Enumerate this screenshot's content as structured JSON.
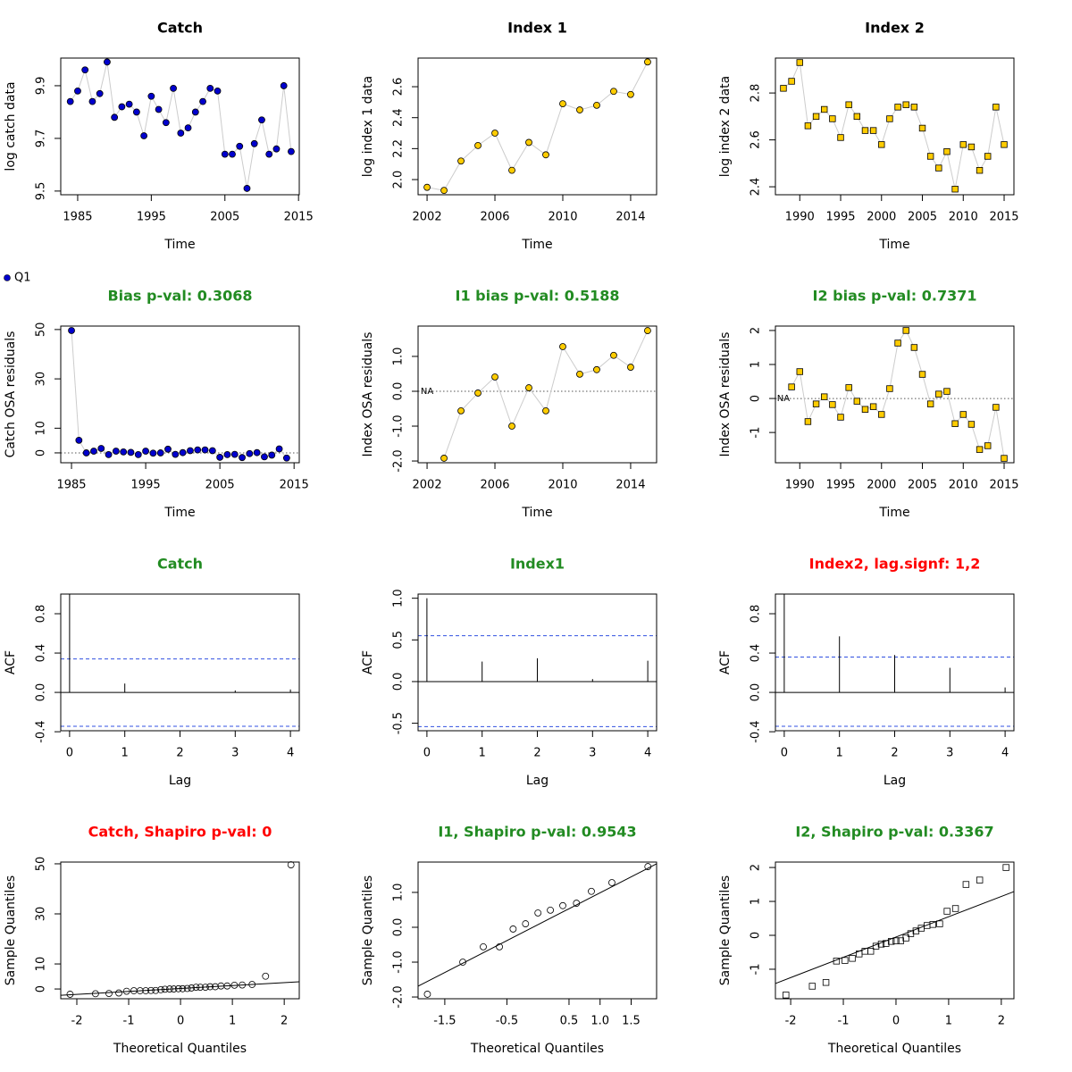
{
  "chart_data": [
    {
      "type": "line",
      "title": "Catch",
      "title_color": "#000000",
      "xlabel": "Time",
      "ylabel": "log catch data",
      "marker": "circle",
      "x": [
        1984,
        1985,
        1986,
        1987,
        1988,
        1989,
        1990,
        1991,
        1992,
        1993,
        1994,
        1995,
        1996,
        1997,
        1998,
        1999,
        2000,
        2001,
        2002,
        2003,
        2004,
        2005,
        2006,
        2007,
        2008,
        2009,
        2010,
        2011,
        2012,
        2013,
        2014
      ],
      "series": [
        {
          "name": "Q1",
          "color": "#0000cd",
          "values": [
            9.84,
            9.88,
            9.96,
            9.84,
            9.87,
            9.99,
            9.78,
            9.82,
            9.83,
            9.8,
            9.71,
            9.86,
            9.81,
            9.76,
            9.89,
            9.72,
            9.74,
            9.8,
            9.84,
            9.89,
            9.88,
            9.64,
            9.64,
            9.67,
            9.51,
            9.68,
            9.77,
            9.64,
            9.66,
            9.9,
            9.65
          ]
        }
      ],
      "xlim": [
        1982.7,
        2015.1
      ],
      "ylim": [
        9.486,
        10.005
      ],
      "xticks": [
        1985,
        1995,
        2005,
        2015
      ],
      "yticks": [
        9.5,
        9.7,
        9.9
      ]
    },
    {
      "type": "line",
      "title": "Index 1",
      "title_color": "#000000",
      "xlabel": "Time",
      "ylabel": "log index 1 data",
      "marker": "circle",
      "x": [
        2002,
        2003,
        2004,
        2005,
        2006,
        2007,
        2008,
        2009,
        2010,
        2011,
        2012,
        2013,
        2014,
        2015
      ],
      "series": [
        {
          "color": "#ffcc00",
          "values": [
            1.95,
            1.93,
            2.12,
            2.22,
            2.3,
            2.06,
            2.24,
            2.16,
            2.49,
            2.45,
            2.48,
            2.57,
            2.55,
            2.76
          ]
        }
      ],
      "xlim": [
        2001.47,
        2015.53
      ],
      "ylim": [
        1.902,
        2.785
      ],
      "xticks": [
        2002,
        2006,
        2010,
        2014
      ],
      "yticks": [
        {
          "value": 2,
          "label": "2.0"
        },
        2.2,
        2.4,
        2.6
      ]
    },
    {
      "type": "line",
      "title": "Index 2",
      "title_color": "#000000",
      "xlabel": "Time",
      "ylabel": "log index 2 data",
      "marker": "square",
      "x": [
        1988,
        1989,
        1990,
        1991,
        1992,
        1993,
        1994,
        1995,
        1996,
        1997,
        1998,
        1999,
        2000,
        2001,
        2002,
        2003,
        2004,
        2005,
        2006,
        2007,
        2008,
        2009,
        2010,
        2011,
        2012,
        2013,
        2014,
        2015
      ],
      "series": [
        {
          "color": "#ffcc00",
          "values": [
            2.82,
            2.85,
            2.93,
            2.66,
            2.7,
            2.73,
            2.69,
            2.61,
            2.75,
            2.7,
            2.64,
            2.64,
            2.58,
            2.69,
            2.74,
            2.75,
            2.74,
            2.65,
            2.53,
            2.48,
            2.55,
            2.39,
            2.58,
            2.57,
            2.47,
            2.53,
            2.74,
            2.58
          ]
        }
      ],
      "xlim": [
        1987.02,
        2016.2
      ],
      "ylim": [
        2.366,
        2.949
      ],
      "xticks": [
        1990,
        1995,
        2000,
        2005,
        2010,
        2015
      ],
      "yticks": [
        2.4,
        2.6,
        2.8
      ]
    },
    {
      "type": "line",
      "title": "Bias p-val: 0.3068",
      "title_color": "#228b22",
      "xlabel": "Time",
      "ylabel": "Catch OSA residuals",
      "marker": "circle",
      "hline": 0,
      "x": [
        1985,
        1986,
        1987,
        1988,
        1989,
        1990,
        1991,
        1992,
        1993,
        1994,
        1995,
        1996,
        1997,
        1998,
        1999,
        2000,
        2001,
        2002,
        2003,
        2004,
        2005,
        2006,
        2007,
        2008,
        2009,
        2010,
        2011,
        2012,
        2013,
        2014
      ],
      "series": [
        {
          "color": "#0000cd",
          "values": [
            49.6,
            5.1,
            0,
            0.7,
            1.8,
            -0.7,
            0.7,
            0.4,
            0.2,
            -0.7,
            0.7,
            -0.1,
            0,
            1.5,
            -0.6,
            0.1,
            0.9,
            1.2,
            1.2,
            0.9,
            -1.8,
            -0.7,
            -0.6,
            -1.9,
            -0.3,
            0.1,
            -1.6,
            -0.9,
            1.6,
            -2.1
          ]
        }
      ],
      "xlim": [
        1983.55,
        2015.7
      ],
      "ylim": [
        -4.0,
        51.4
      ],
      "xticks": [
        1985,
        1995,
        2005,
        2015
      ],
      "yticks": [
        0,
        10,
        30,
        50
      ]
    },
    {
      "type": "line",
      "title": "I1 bias p-val: 0.5188",
      "title_color": "#228b22",
      "xlabel": "Time",
      "ylabel": "Index OSA residuals",
      "marker": "circle",
      "hline": 0,
      "annotation": "NA",
      "x": [
        2002,
        2003,
        2004,
        2005,
        2006,
        2007,
        2008,
        2009,
        2010,
        2011,
        2012,
        2013,
        2014,
        2015
      ],
      "series": [
        {
          "color": "#ffcc00",
          "values": [
            null,
            -1.92,
            -0.56,
            -0.05,
            0.41,
            -1.0,
            0.1,
            -0.56,
            1.28,
            0.49,
            0.62,
            1.03,
            0.69,
            1.74
          ]
        }
      ],
      "xlim": [
        2001.47,
        2015.53
      ],
      "ylim": [
        -2.05,
        1.87
      ],
      "xticks": [
        2002,
        2006,
        2010,
        2014
      ],
      "yticks": [
        {
          "value": -2,
          "label": "-2.0"
        },
        {
          "value": -1,
          "label": "-1.0"
        },
        {
          "value": 0,
          "label": "0.0"
        },
        {
          "value": 1,
          "label": "1.0"
        }
      ]
    },
    {
      "type": "line",
      "title": "I2 bias p-val: 0.7371",
      "title_color": "#228b22",
      "xlabel": "Time",
      "ylabel": "Index OSA residuals",
      "marker": "square",
      "hline": 0,
      "annotation": "NA",
      "x": [
        1988,
        1989,
        1990,
        1991,
        1992,
        1993,
        1994,
        1995,
        1996,
        1997,
        1998,
        1999,
        2000,
        2001,
        2002,
        2003,
        2004,
        2005,
        2006,
        2007,
        2008,
        2009,
        2010,
        2011,
        2012,
        2013,
        2014,
        2015
      ],
      "series": [
        {
          "color": "#ffcc00",
          "values": [
            null,
            0.34,
            0.79,
            -0.68,
            -0.16,
            0.05,
            -0.18,
            -0.55,
            0.32,
            -0.08,
            -0.32,
            -0.24,
            -0.47,
            0.29,
            1.63,
            2.0,
            1.5,
            0.71,
            -0.16,
            0.13,
            0.21,
            -0.74,
            -0.47,
            -0.76,
            -1.5,
            -1.39,
            -0.26,
            -1.76
          ]
        }
      ],
      "xlim": [
        1987.02,
        2016.2
      ],
      "ylim": [
        -1.89,
        2.13
      ],
      "xticks": [
        1990,
        1995,
        2000,
        2005,
        2010,
        2015
      ],
      "yticks": [
        -1,
        0,
        1,
        2
      ]
    },
    {
      "type": "acf",
      "title": "Catch",
      "title_color": "#228b22",
      "xlabel": "Lag",
      "ylabel": "ACF",
      "x": [
        0,
        1,
        2,
        3,
        4
      ],
      "values": [
        1.0,
        0.09,
        0,
        0.02,
        0.03
      ],
      "conf_lines": [
        0.34,
        -0.345
      ],
      "xlim": [
        -0.16,
        4.16
      ],
      "ylim": [
        -0.39,
        1.0
      ],
      "xticks": [
        0,
        1,
        2,
        3,
        4
      ],
      "yticks": [
        -0.4,
        {
          "value": 0,
          "label": "0.0"
        },
        0.4,
        0.8
      ]
    },
    {
      "type": "acf",
      "title": "Index1",
      "title_color": "#228b22",
      "xlabel": "Lag",
      "ylabel": "ACF",
      "x": [
        0,
        1,
        2,
        3,
        4
      ],
      "values": [
        1.0,
        0.24,
        0.28,
        0.03,
        0.25
      ],
      "conf_lines": [
        0.55,
        -0.54
      ],
      "xlim": [
        -0.16,
        4.16
      ],
      "ylim": [
        -0.59,
        1.05
      ],
      "xticks": [
        0,
        1,
        2,
        3,
        4
      ],
      "yticks": [
        -0.5,
        {
          "value": 0,
          "label": "0.0"
        },
        0.5,
        {
          "value": 1,
          "label": "1.0"
        }
      ]
    },
    {
      "type": "acf",
      "title": "Index2, lag.signf: 1,2",
      "title_color": "#ff0000",
      "xlabel": "Lag",
      "ylabel": "ACF",
      "x": [
        0,
        1,
        2,
        3,
        4
      ],
      "values": [
        1.0,
        0.57,
        0.38,
        0.25,
        0.05
      ],
      "conf_lines": [
        0.36,
        -0.345
      ],
      "xlim": [
        -0.16,
        4.16
      ],
      "ylim": [
        -0.39,
        1.0
      ],
      "xticks": [
        0,
        1,
        2,
        3,
        4
      ],
      "yticks": [
        -0.4,
        {
          "value": 0,
          "label": "0.0"
        },
        0.4,
        0.8
      ]
    },
    {
      "type": "qq",
      "title": "Catch, Shapiro p-val: 0",
      "title_color": "#ff0000",
      "xlabel": "Theoretical Quantiles",
      "ylabel": "Sample Quantiles",
      "marker": "circle",
      "x": [
        -2.13,
        -1.64,
        -1.38,
        -1.19,
        -1.04,
        -0.9,
        -0.78,
        -0.67,
        -0.57,
        -0.48,
        -0.38,
        -0.3,
        -0.21,
        -0.13,
        -0.04,
        0.04,
        0.13,
        0.21,
        0.3,
        0.38,
        0.48,
        0.57,
        0.67,
        0.78,
        0.9,
        1.04,
        1.19,
        1.38,
        1.64,
        2.13
      ],
      "values": [
        -2.1,
        -1.9,
        -1.8,
        -1.6,
        -0.9,
        -0.7,
        -0.7,
        -0.7,
        -0.6,
        -0.6,
        -0.3,
        -0.1,
        0,
        0,
        0.1,
        0.1,
        0.2,
        0.4,
        0.7,
        0.7,
        0.7,
        0.9,
        0.9,
        1.2,
        1.2,
        1.5,
        1.6,
        1.8,
        5.1,
        49.6
      ],
      "qqline": {
        "x": [
          -2.31,
          2.29
        ],
        "y": [
          -2.5,
          2.86
        ]
      },
      "xlim": [
        -2.31,
        2.29
      ],
      "ylim": [
        -3.9,
        50.7
      ],
      "xticks": [
        -2,
        -1,
        0,
        1,
        2
      ],
      "yticks": [
        0,
        10,
        30,
        50
      ]
    },
    {
      "type": "qq",
      "title": "I1, Shapiro p-val: 0.9543",
      "title_color": "#228b22",
      "xlabel": "Theoretical Quantiles",
      "ylabel": "Sample Quantiles",
      "marker": "circle",
      "x": [
        -1.78,
        -1.21,
        -0.88,
        -0.62,
        -0.4,
        -0.2,
        0,
        0.2,
        0.4,
        0.62,
        0.86,
        1.19,
        1.77
      ],
      "values": [
        -1.92,
        -1.0,
        -0.56,
        -0.56,
        -0.05,
        0.1,
        0.41,
        0.49,
        0.62,
        0.69,
        1.03,
        1.28,
        1.74
      ],
      "qqline": {
        "x": [
          -1.93,
          1.91
        ],
        "y": [
          -1.69,
          1.82
        ]
      },
      "xlim": [
        -1.93,
        1.91
      ],
      "ylim": [
        -2.05,
        1.87
      ],
      "xticks": [
        -1.5,
        -0.5,
        0.5,
        {
          "value": 1,
          "label": "1.0"
        },
        1.5
      ],
      "yticks": [
        {
          "value": -2,
          "label": "-2.0"
        },
        {
          "value": -1,
          "label": "-1.0"
        },
        {
          "value": 0,
          "label": "0.0"
        },
        {
          "value": 1,
          "label": "1.0"
        }
      ]
    },
    {
      "type": "qq",
      "title": "I2, Shapiro p-val: 0.3367",
      "title_color": "#228b22",
      "xlabel": "Theoretical Quantiles",
      "ylabel": "Sample Quantiles",
      "marker": "square",
      "x": [
        -2.09,
        -1.59,
        -1.33,
        -1.13,
        -0.97,
        -0.83,
        -0.7,
        -0.59,
        -0.48,
        -0.38,
        -0.28,
        -0.19,
        -0.09,
        0,
        0.09,
        0.19,
        0.28,
        0.38,
        0.48,
        0.59,
        0.7,
        0.83,
        0.97,
        1.13,
        1.33,
        1.59,
        2.09
      ],
      "values": [
        -1.76,
        -1.5,
        -1.39,
        -0.76,
        -0.74,
        -0.68,
        -0.55,
        -0.47,
        -0.47,
        -0.32,
        -0.26,
        -0.24,
        -0.18,
        -0.16,
        -0.16,
        -0.08,
        0.05,
        0.13,
        0.21,
        0.29,
        0.32,
        0.34,
        0.71,
        0.79,
        1.5,
        1.63,
        2.0
      ],
      "qqline": {
        "x": [
          -2.29,
          2.24
        ],
        "y": [
          -1.42,
          1.29
        ]
      },
      "xlim": [
        -2.29,
        2.24
      ],
      "ylim": [
        -1.87,
        2.16
      ],
      "xticks": [
        -2,
        -1,
        0,
        1,
        2
      ],
      "yticks": [
        -1,
        0,
        1,
        2
      ]
    }
  ]
}
